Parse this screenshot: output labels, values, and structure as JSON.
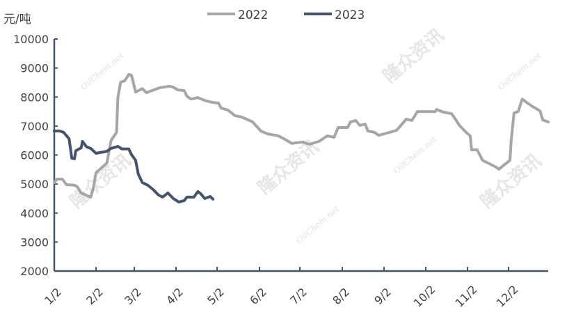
{
  "chart_data": {
    "type": "line",
    "title": "",
    "ylabel": "元/吨",
    "xlabel": "",
    "ylim": [
      2000,
      10000
    ],
    "yticks": [
      2000,
      3000,
      4000,
      5000,
      6000,
      7000,
      8000,
      9000,
      10000
    ],
    "xticks": [
      "1/2",
      "2/2",
      "3/2",
      "4/2",
      "5/2",
      "6/2",
      "7/2",
      "8/2",
      "9/2",
      "10/2",
      "11/2",
      "12/2"
    ],
    "grid": false,
    "legend_position": "top",
    "watermark": [
      "隆众资讯",
      "OilChem.net"
    ],
    "series": [
      {
        "name": "2022",
        "color": "#a6a6a6",
        "points": [
          [
            "01-02",
            5050
          ],
          [
            "01-04",
            5170
          ],
          [
            "01-08",
            5170
          ],
          [
            "01-11",
            4980
          ],
          [
            "01-17",
            4960
          ],
          [
            "01-19",
            4910
          ],
          [
            "01-22",
            4690
          ],
          [
            "01-29",
            4550
          ],
          [
            "01-31",
            4860
          ],
          [
            "02-02",
            5390
          ],
          [
            "02-09",
            5680
          ],
          [
            "02-10",
            5730
          ],
          [
            "02-13",
            6500
          ],
          [
            "02-17",
            6780
          ],
          [
            "02-18",
            7980
          ],
          [
            "02-20",
            8510
          ],
          [
            "02-23",
            8560
          ],
          [
            "02-26",
            8780
          ],
          [
            "02-28",
            8750
          ],
          [
            "03-03",
            8170
          ],
          [
            "03-05",
            8220
          ],
          [
            "03-08",
            8290
          ],
          [
            "03-11",
            8150
          ],
          [
            "03-18",
            8270
          ],
          [
            "03-21",
            8320
          ],
          [
            "03-28",
            8370
          ],
          [
            "03-31",
            8340
          ],
          [
            "04-03",
            8250
          ],
          [
            "04-08",
            8220
          ],
          [
            "04-10",
            8030
          ],
          [
            "04-13",
            7930
          ],
          [
            "04-18",
            7980
          ],
          [
            "04-23",
            7880
          ],
          [
            "04-28",
            7820
          ],
          [
            "05-03",
            7790
          ],
          [
            "05-05",
            7620
          ],
          [
            "05-10",
            7550
          ],
          [
            "05-15",
            7360
          ],
          [
            "05-20",
            7310
          ],
          [
            "05-28",
            7140
          ],
          [
            "06-03",
            6830
          ],
          [
            "06-08",
            6730
          ],
          [
            "06-16",
            6660
          ],
          [
            "06-21",
            6540
          ],
          [
            "06-26",
            6400
          ],
          [
            "07-04",
            6450
          ],
          [
            "07-09",
            6370
          ],
          [
            "07-16",
            6470
          ],
          [
            "07-22",
            6660
          ],
          [
            "07-27",
            6610
          ],
          [
            "07-30",
            6950
          ],
          [
            "08-06",
            6950
          ],
          [
            "08-08",
            7140
          ],
          [
            "08-12",
            7190
          ],
          [
            "08-15",
            7020
          ],
          [
            "08-19",
            7070
          ],
          [
            "08-21",
            6830
          ],
          [
            "08-26",
            6780
          ],
          [
            "08-29",
            6680
          ],
          [
            "09-06",
            6780
          ],
          [
            "09-11",
            6850
          ],
          [
            "09-15",
            7070
          ],
          [
            "09-18",
            7240
          ],
          [
            "09-22",
            7190
          ],
          [
            "09-26",
            7500
          ],
          [
            "10-01",
            7500
          ],
          [
            "10-09",
            7500
          ],
          [
            "10-10",
            7570
          ],
          [
            "10-15",
            7480
          ],
          [
            "10-21",
            7430
          ],
          [
            "10-23",
            7310
          ],
          [
            "10-27",
            7020
          ],
          [
            "11-01",
            6780
          ],
          [
            "11-04",
            6660
          ],
          [
            "11-05",
            6180
          ],
          [
            "11-09",
            6180
          ],
          [
            "11-13",
            5820
          ],
          [
            "11-18",
            5700
          ],
          [
            "11-23",
            5580
          ],
          [
            "11-25",
            5510
          ],
          [
            "11-28",
            5630
          ],
          [
            "12-03",
            5820
          ],
          [
            "12-04",
            6540
          ],
          [
            "12-06",
            7450
          ],
          [
            "12-09",
            7500
          ],
          [
            "12-12",
            7930
          ],
          [
            "12-15",
            7820
          ],
          [
            "12-19",
            7690
          ],
          [
            "12-25",
            7520
          ],
          [
            "12-27",
            7210
          ],
          [
            "12-31",
            7140
          ]
        ]
      },
      {
        "name": "2023",
        "color": "#44546a",
        "points": [
          [
            "01-02",
            6830
          ],
          [
            "01-06",
            6830
          ],
          [
            "01-09",
            6780
          ],
          [
            "01-13",
            6560
          ],
          [
            "01-15",
            5890
          ],
          [
            "01-17",
            5870
          ],
          [
            "01-18",
            6150
          ],
          [
            "01-22",
            6250
          ],
          [
            "01-23",
            6470
          ],
          [
            "01-26",
            6280
          ],
          [
            "01-29",
            6230
          ],
          [
            "02-02",
            6060
          ],
          [
            "02-10",
            6130
          ],
          [
            "02-13",
            6230
          ],
          [
            "02-17",
            6280
          ],
          [
            "02-18",
            6300
          ],
          [
            "02-21",
            6210
          ],
          [
            "02-26",
            6210
          ],
          [
            "02-28",
            6010
          ],
          [
            "03-03",
            5820
          ],
          [
            "03-05",
            5340
          ],
          [
            "03-08",
            5050
          ],
          [
            "03-12",
            4960
          ],
          [
            "03-16",
            4810
          ],
          [
            "03-20",
            4620
          ],
          [
            "03-23",
            4550
          ],
          [
            "03-27",
            4690
          ],
          [
            "03-31",
            4500
          ],
          [
            "04-04",
            4380
          ],
          [
            "04-08",
            4430
          ],
          [
            "04-10",
            4550
          ],
          [
            "04-15",
            4550
          ],
          [
            "04-18",
            4740
          ],
          [
            "04-20",
            4670
          ],
          [
            "04-23",
            4500
          ],
          [
            "04-27",
            4570
          ],
          [
            "04-29",
            4480
          ]
        ]
      }
    ]
  }
}
